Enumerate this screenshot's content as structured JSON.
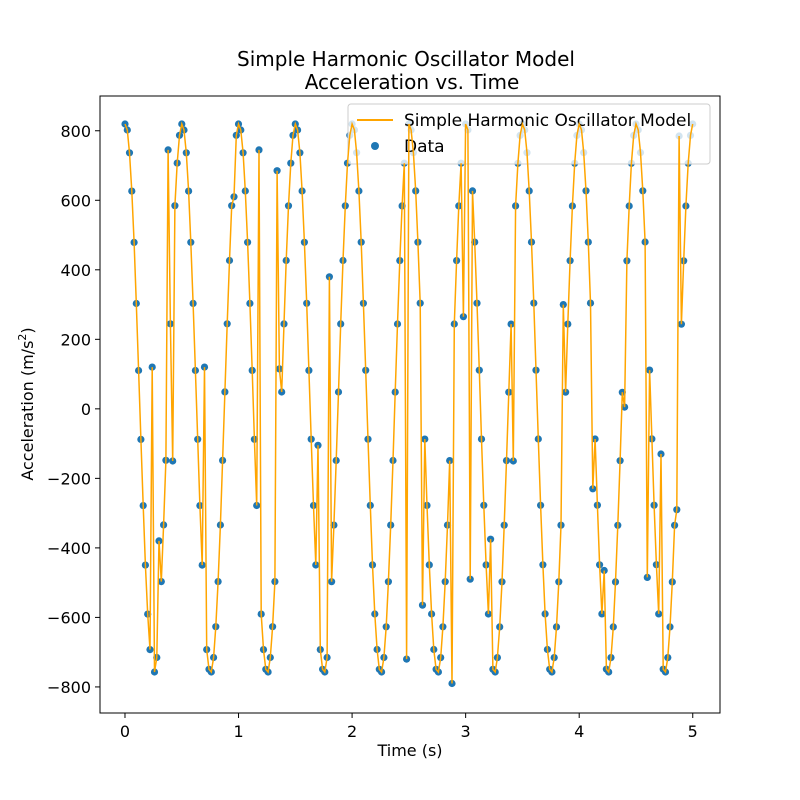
{
  "chart_data": {
    "type": "line",
    "title_line1": "Simple Harmonic Oscillator Model",
    "title_line2": "Acceleration vs. Time",
    "xlabel": "Time (s)",
    "ylabel_prefix": "Acceleration (m/s",
    "ylabel_exp": "2",
    "ylabel_suffix": ")",
    "xlim": [
      -0.22,
      5.24
    ],
    "ylim": [
      -875,
      900
    ],
    "x_ticks": [
      0,
      1,
      2,
      3,
      4,
      5
    ],
    "x_tick_labels": [
      "0",
      "1",
      "2",
      "3",
      "4",
      "5"
    ],
    "y_ticks": [
      -800,
      -600,
      -400,
      -200,
      0,
      200,
      400,
      600,
      800
    ],
    "y_tick_labels": [
      "−800",
      "−600",
      "−400",
      "−200",
      "0",
      "200",
      "400",
      "600",
      "800"
    ],
    "grid": false,
    "legend_position": "top-right",
    "colors": {
      "line": "#ffa500",
      "points": "#1f77b4"
    },
    "model": {
      "amplitude": 790,
      "angular_frequency": 12.566,
      "phase": 1.532,
      "offset": 30,
      "t_start": 0,
      "t_end": 5,
      "step": 0.02
    },
    "outliers": [
      {
        "x": 0.24,
        "y": 120
      },
      {
        "x": 0.3,
        "y": -380
      },
      {
        "x": 0.38,
        "y": 745
      },
      {
        "x": 0.42,
        "y": -150
      },
      {
        "x": 0.7,
        "y": 120
      },
      {
        "x": 0.96,
        "y": 610
      },
      {
        "x": 1.18,
        "y": 745
      },
      {
        "x": 1.34,
        "y": 685
      },
      {
        "x": 1.36,
        "y": 115
      },
      {
        "x": 1.7,
        "y": -105
      },
      {
        "x": 1.8,
        "y": 380
      },
      {
        "x": 2.48,
        "y": -720
      },
      {
        "x": 2.62,
        "y": -565
      },
      {
        "x": 2.88,
        "y": -790
      },
      {
        "x": 2.98,
        "y": 265
      },
      {
        "x": 3.04,
        "y": -490
      },
      {
        "x": 3.22,
        "y": -375
      },
      {
        "x": 3.42,
        "y": -150
      },
      {
        "x": 3.86,
        "y": 300
      },
      {
        "x": 4.12,
        "y": -230
      },
      {
        "x": 4.22,
        "y": -465
      },
      {
        "x": 4.4,
        "y": 5
      },
      {
        "x": 4.6,
        "y": -485
      },
      {
        "x": 4.72,
        "y": -130
      },
      {
        "x": 4.86,
        "y": -290
      },
      {
        "x": 4.88,
        "y": 785
      }
    ],
    "series": [
      {
        "name": "Simple Harmonic Oscillator Model",
        "kind": "line"
      },
      {
        "name": "Data",
        "kind": "scatter"
      }
    ]
  }
}
